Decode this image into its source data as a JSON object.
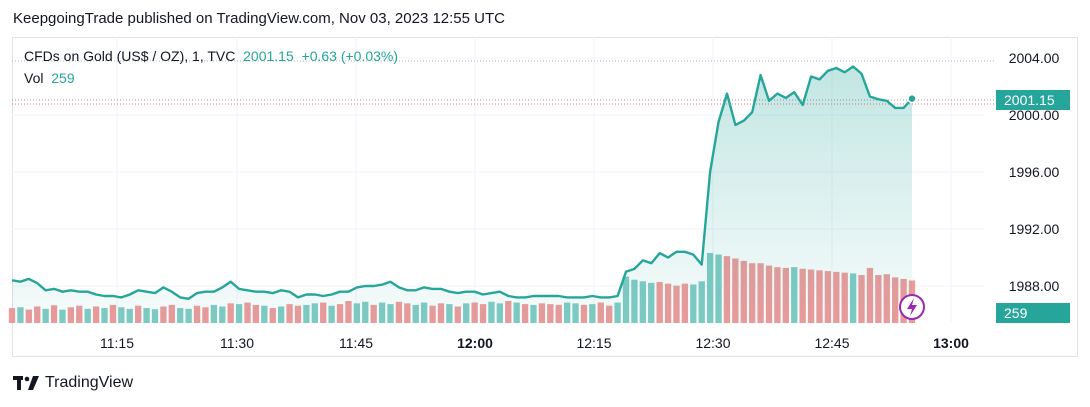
{
  "header": {
    "text": "KeepgoingTrade published on TradingView.com, Nov 03, 2023 12:55 UTC"
  },
  "legend": {
    "symbol": "CFDs on Gold (US$ / OZ), 1, TVC",
    "price": "2001.15",
    "change": "+0.63 (+0.03%)",
    "vol_label": "Vol",
    "vol_value": "259"
  },
  "footer": {
    "brand": "TradingView"
  },
  "colors": {
    "up": "#26a69a",
    "down": "#ef9a9a",
    "up_vol": "#80cbc4",
    "line": "#26a69a",
    "grid": "#f0f3fa",
    "bolt": "#9c27b0"
  },
  "chart_data": {
    "type": "area",
    "title": "",
    "xlabel": "",
    "ylabel": "",
    "x_ticks": [
      "11:15",
      "11:30",
      "11:45",
      "12:00",
      "12:15",
      "12:30",
      "12:45",
      "13:00"
    ],
    "y_ticks": [
      "1988.00",
      "1992.00",
      "1996.00",
      "2000.00",
      "2004.00"
    ],
    "ylim": [
      1986.0,
      2005.0
    ],
    "last_price": "2001.15",
    "last_volume": "259",
    "series": [
      {
        "name": "Price",
        "values": [
          1988.4,
          1988.3,
          1988.5,
          1988.2,
          1987.7,
          1987.8,
          1987.6,
          1987.7,
          1987.6,
          1987.6,
          1987.4,
          1987.3,
          1987.3,
          1987.2,
          1987.4,
          1987.7,
          1987.6,
          1987.5,
          1987.9,
          1987.6,
          1987.2,
          1987.1,
          1987.5,
          1987.6,
          1987.6,
          1987.9,
          1988.3,
          1987.8,
          1987.7,
          1987.6,
          1987.6,
          1987.5,
          1987.7,
          1987.6,
          1987.2,
          1987.4,
          1987.4,
          1987.3,
          1987.4,
          1987.6,
          1987.6,
          1987.9,
          1988.0,
          1988.0,
          1988.1,
          1988.3,
          1987.9,
          1987.7,
          1987.7,
          1987.9,
          1987.8,
          1987.8,
          1987.6,
          1987.5,
          1987.6,
          1987.6,
          1987.4,
          1987.5,
          1987.6,
          1987.3,
          1987.2,
          1987.2,
          1987.3,
          1987.3,
          1987.3,
          1987.3,
          1987.2,
          1987.2,
          1987.2,
          1987.3,
          1987.2,
          1987.2,
          1987.3,
          1989.0,
          1989.2,
          1989.8,
          1989.6,
          1990.3,
          1990.0,
          1990.4,
          1990.4,
          1990.2,
          1989.5,
          1996.0,
          1999.5,
          2001.5,
          1999.3,
          1999.6,
          2000.2,
          2002.8,
          2001.0,
          2001.5,
          2001.2,
          2001.6,
          2000.7,
          2002.7,
          2002.5,
          2003.1,
          2003.3,
          2003.0,
          2003.4,
          2002.9,
          2001.3,
          2001.1,
          2001.0,
          2000.5,
          2000.5,
          2001.15
        ]
      },
      {
        "name": "Volume",
        "up": [
          false,
          true,
          false,
          false,
          true,
          false,
          true,
          false,
          false,
          true,
          false,
          true,
          false,
          true,
          true,
          false,
          true,
          true,
          false,
          false,
          true,
          true,
          false,
          false,
          true,
          true,
          false,
          true,
          false,
          false,
          true,
          false,
          true,
          false,
          false,
          true,
          true,
          false,
          true,
          false,
          false,
          true,
          true,
          false,
          true,
          true,
          false,
          false,
          true,
          true,
          false,
          false,
          true,
          false,
          true,
          false,
          false,
          true,
          true,
          false,
          true,
          false,
          true,
          false,
          false,
          false,
          true,
          true,
          false,
          true,
          false,
          false,
          true,
          true,
          true,
          true,
          true,
          false,
          false,
          false,
          false,
          true,
          true,
          true,
          true,
          false,
          false,
          false,
          false,
          false,
          false,
          false,
          false,
          true,
          false,
          false,
          false,
          false,
          false,
          false,
          true,
          false,
          false,
          false,
          false,
          false,
          false,
          false
        ],
        "values": [
          38,
          40,
          34,
          42,
          36,
          45,
          34,
          40,
          44,
          36,
          42,
          38,
          46,
          40,
          36,
          44,
          38,
          35,
          42,
          46,
          38,
          36,
          44,
          40,
          46,
          42,
          50,
          48,
          52,
          46,
          44,
          38,
          42,
          48,
          44,
          46,
          50,
          52,
          44,
          48,
          56,
          50,
          54,
          46,
          52,
          48,
          54,
          50,
          46,
          52,
          44,
          50,
          48,
          42,
          50,
          52,
          48,
          54,
          50,
          56,
          52,
          48,
          46,
          50,
          48,
          46,
          52,
          50,
          46,
          48,
          52,
          44,
          52,
          118,
          110,
          106,
          102,
          104,
          100,
          95,
          100,
          98,
          106,
          178,
          174,
          170,
          164,
          158,
          152,
          152,
          146,
          142,
          140,
          142,
          138,
          136,
          134,
          132,
          130,
          128,
          126,
          122,
          140,
          122,
          124,
          116,
          112,
          108
        ]
      }
    ],
    "volume_scale": "relative"
  }
}
